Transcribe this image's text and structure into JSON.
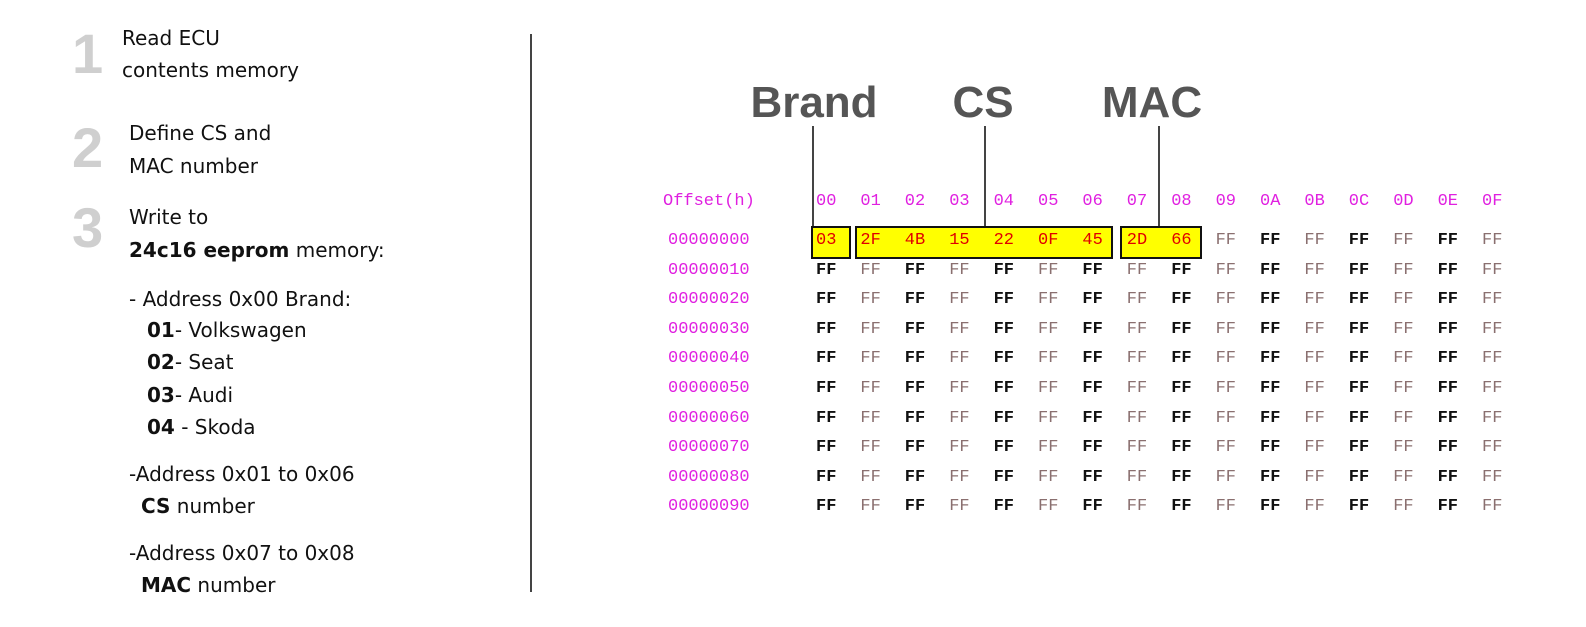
{
  "steps": [
    {
      "num": "1",
      "lines": [
        "Read ECU",
        "contents memory"
      ]
    },
    {
      "num": "2",
      "lines": [
        "Define CS and",
        "MAC number"
      ]
    },
    {
      "num": "3",
      "line1": "Write to",
      "bold": "24c16 eeprom",
      "rest": " memory:"
    }
  ],
  "details": {
    "brand_header": "- Address 0x00 Brand:",
    "brands": [
      {
        "code": "01",
        "sep": "- ",
        "name": "Volkswagen"
      },
      {
        "code": "02",
        "sep": "- ",
        "name": "Seat"
      },
      {
        "code": "03",
        "sep": "- ",
        "name": "Audi"
      },
      {
        "code": "04",
        "sep": " - ",
        "name": "Skoda"
      }
    ],
    "cs_header": "-Address 0x01 to 0x06",
    "cs_bold": "CS",
    "cs_rest": " number",
    "mac_header": "-Address 0x07 to 0x08",
    "mac_bold": "MAC",
    "mac_rest": " number"
  },
  "labels": {
    "brand": "Brand",
    "cs": "CS",
    "mac": "MAC"
  },
  "hex": {
    "offset_header": "Offset(h)",
    "columns": [
      "00",
      "01",
      "02",
      "03",
      "04",
      "05",
      "06",
      "07",
      "08",
      "09",
      "0A",
      "0B",
      "0C",
      "0D",
      "0E",
      "0F"
    ],
    "rows": [
      {
        "offset": "00000000",
        "bytes": [
          "03",
          "2F",
          "4B",
          "15",
          "22",
          "0F",
          "45",
          "2D",
          "66",
          "FF",
          "FF",
          "FF",
          "FF",
          "FF",
          "FF",
          "FF"
        ]
      },
      {
        "offset": "00000010",
        "bytes": [
          "FF",
          "FF",
          "FF",
          "FF",
          "FF",
          "FF",
          "FF",
          "FF",
          "FF",
          "FF",
          "FF",
          "FF",
          "FF",
          "FF",
          "FF",
          "FF"
        ]
      },
      {
        "offset": "00000020",
        "bytes": [
          "FF",
          "FF",
          "FF",
          "FF",
          "FF",
          "FF",
          "FF",
          "FF",
          "FF",
          "FF",
          "FF",
          "FF",
          "FF",
          "FF",
          "FF",
          "FF"
        ]
      },
      {
        "offset": "00000030",
        "bytes": [
          "FF",
          "FF",
          "FF",
          "FF",
          "FF",
          "FF",
          "FF",
          "FF",
          "FF",
          "FF",
          "FF",
          "FF",
          "FF",
          "FF",
          "FF",
          "FF"
        ]
      },
      {
        "offset": "00000040",
        "bytes": [
          "FF",
          "FF",
          "FF",
          "FF",
          "FF",
          "FF",
          "FF",
          "FF",
          "FF",
          "FF",
          "FF",
          "FF",
          "FF",
          "FF",
          "FF",
          "FF"
        ]
      },
      {
        "offset": "00000050",
        "bytes": [
          "FF",
          "FF",
          "FF",
          "FF",
          "FF",
          "FF",
          "FF",
          "FF",
          "FF",
          "FF",
          "FF",
          "FF",
          "FF",
          "FF",
          "FF",
          "FF"
        ]
      },
      {
        "offset": "00000060",
        "bytes": [
          "FF",
          "FF",
          "FF",
          "FF",
          "FF",
          "FF",
          "FF",
          "FF",
          "FF",
          "FF",
          "FF",
          "FF",
          "FF",
          "FF",
          "FF",
          "FF"
        ]
      },
      {
        "offset": "00000070",
        "bytes": [
          "FF",
          "FF",
          "FF",
          "FF",
          "FF",
          "FF",
          "FF",
          "FF",
          "FF",
          "FF",
          "FF",
          "FF",
          "FF",
          "FF",
          "FF",
          "FF"
        ]
      },
      {
        "offset": "00000080",
        "bytes": [
          "FF",
          "FF",
          "FF",
          "FF",
          "FF",
          "FF",
          "FF",
          "FF",
          "FF",
          "FF",
          "FF",
          "FF",
          "FF",
          "FF",
          "FF",
          "FF"
        ]
      },
      {
        "offset": "00000090",
        "bytes": [
          "FF",
          "FF",
          "FF",
          "FF",
          "FF",
          "FF",
          "FF",
          "FF",
          "FF",
          "FF",
          "FF",
          "FF",
          "FF",
          "FF",
          "FF",
          "FF"
        ]
      }
    ],
    "highlight_color": "#ffff00",
    "offset_color": "#e020e0"
  }
}
